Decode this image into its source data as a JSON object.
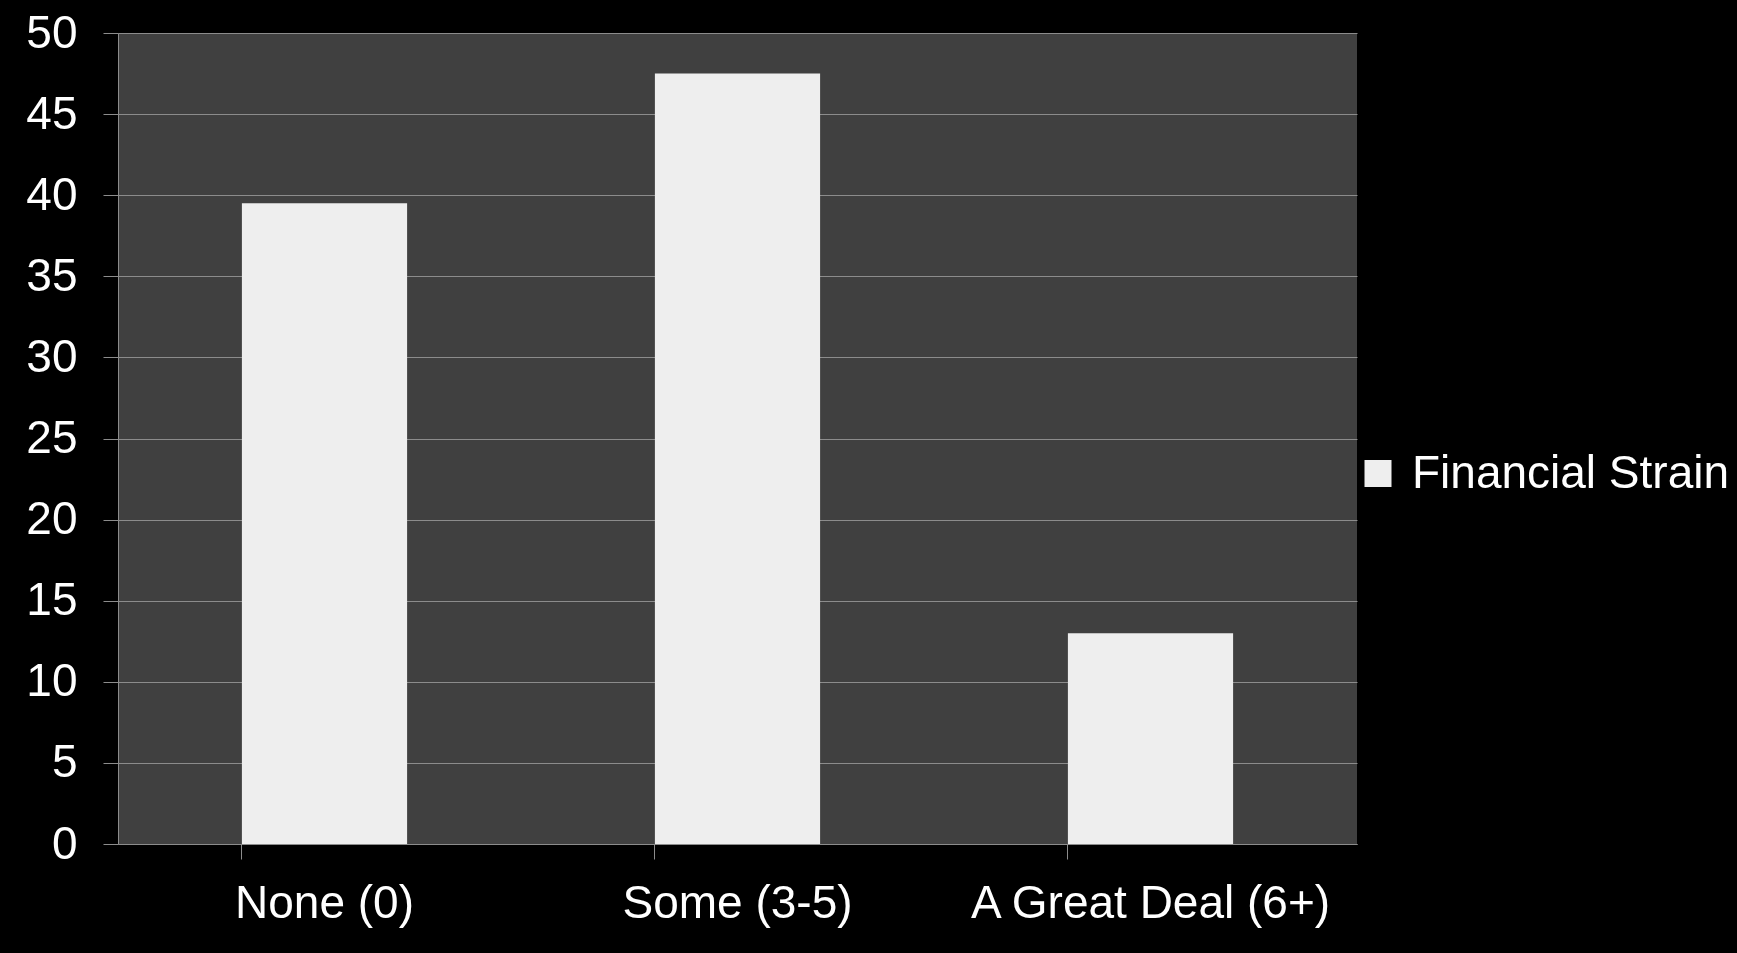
{
  "chart_data": {
    "type": "bar",
    "categories": [
      "None (0)",
      "Some (3-5)",
      "A Great Deal (6+)"
    ],
    "series": [
      {
        "name": "Financial Strain",
        "color": "#eeeeee",
        "values": [
          39.5,
          47.5,
          13
        ]
      }
    ],
    "ylim": [
      0,
      50
    ],
    "yticks": [
      0,
      5,
      10,
      15,
      20,
      25,
      30,
      35,
      40,
      45,
      50
    ],
    "grid": "y",
    "legend": "right"
  }
}
